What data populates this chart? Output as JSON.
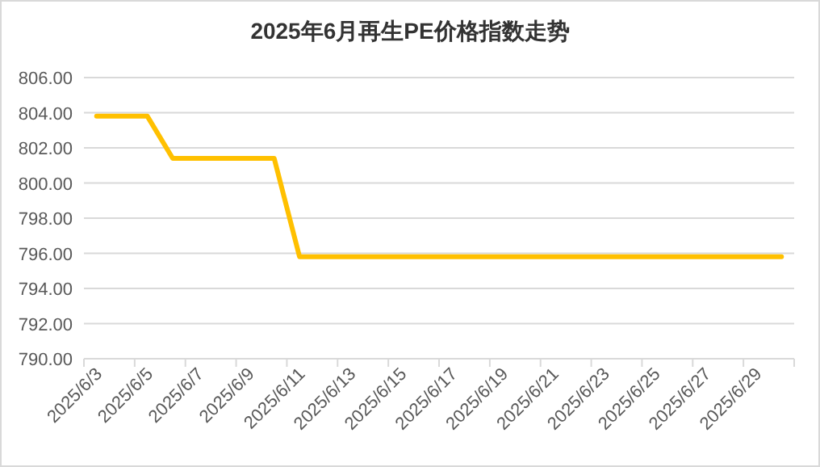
{
  "chart_data": {
    "type": "line",
    "title": "2025年6月再生PE价格指数走势",
    "categories": [
      "2025/6/3",
      null,
      "2025/6/5",
      null,
      "2025/6/7",
      null,
      "2025/6/9",
      null,
      "2025/6/11",
      null,
      "2025/6/13",
      null,
      "2025/6/15",
      null,
      "2025/6/17",
      null,
      "2025/6/19",
      null,
      "2025/6/21",
      null,
      "2025/6/23",
      null,
      "2025/6/25",
      null,
      "2025/6/27",
      null,
      "2025/6/29",
      null
    ],
    "series": [
      {
        "color": "#ffc000",
        "values": [
          803.8,
          803.8,
          803.8,
          801.4,
          801.4,
          801.4,
          801.4,
          801.4,
          795.8,
          795.8,
          795.8,
          795.8,
          795.8,
          795.8,
          795.8,
          795.8,
          795.8,
          795.8,
          795.8,
          795.8,
          795.8,
          795.8,
          795.8,
          795.8,
          795.8,
          795.8,
          795.8,
          795.8
        ]
      }
    ],
    "ylim": [
      790,
      806
    ],
    "yticks": [
      {
        "value": 790,
        "label": "790.00"
      },
      {
        "value": 792,
        "label": "792.00"
      },
      {
        "value": 794,
        "label": "794.00"
      },
      {
        "value": 796,
        "label": "796.00"
      },
      {
        "value": 798,
        "label": "798.00"
      },
      {
        "value": 800,
        "label": "800.00"
      },
      {
        "value": 802,
        "label": "802.00"
      },
      {
        "value": 804,
        "label": "804.00"
      },
      {
        "value": 806,
        "label": "806.00"
      }
    ],
    "grid": "y"
  }
}
